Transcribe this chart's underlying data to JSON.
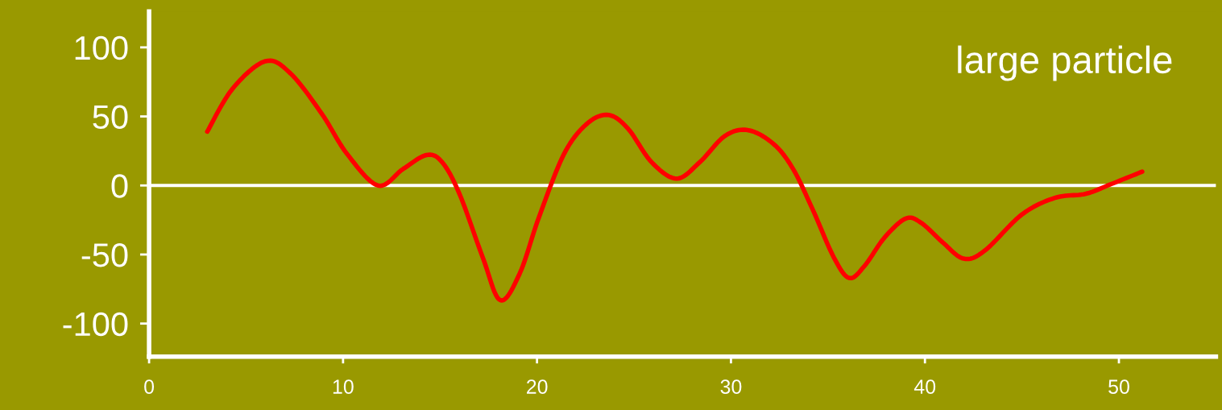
{
  "chart_data": {
    "type": "line",
    "annotations": [
      "large particle"
    ],
    "x": [
      3.0,
      4.3,
      6.0,
      7.3,
      8.9,
      10.2,
      11.8,
      13.1,
      14.3,
      15.1,
      16.0,
      17.2,
      18.1,
      19.1,
      20.1,
      21.4,
      22.6,
      23.7,
      24.7,
      25.9,
      27.2,
      28.4,
      29.7,
      30.9,
      32.2,
      33.2,
      34.2,
      35.3,
      36.1,
      36.9,
      37.9,
      39.0,
      39.8,
      40.9,
      42.0,
      43.1,
      45.0,
      46.7,
      48.3,
      49.6,
      51.2
    ],
    "series": [
      {
        "color": "#ff0000",
        "values": [
          39,
          70,
          90,
          81,
          52,
          23,
          0,
          12,
          22,
          17,
          -6,
          -52,
          -83,
          -64,
          -23,
          23,
          45,
          51,
          41,
          17,
          5,
          17,
          36,
          40,
          30,
          12,
          -17,
          -52,
          -67,
          -58,
          -38,
          -24,
          -27,
          -41,
          -53,
          -47,
          -21,
          -9,
          -6,
          1,
          10
        ]
      }
    ],
    "xlim": [
      0,
      55
    ],
    "ylim": [
      -124,
      126
    ],
    "xticks": [
      0,
      10,
      20,
      30,
      40,
      50
    ],
    "yticks": [
      -100,
      -50,
      0,
      50,
      100
    ],
    "ref_lines": [
      {
        "axis": "y",
        "value": 0,
        "color": "#ffffff"
      }
    ],
    "grid": false,
    "legend": false,
    "marker": "none",
    "line_style": "solid"
  }
}
